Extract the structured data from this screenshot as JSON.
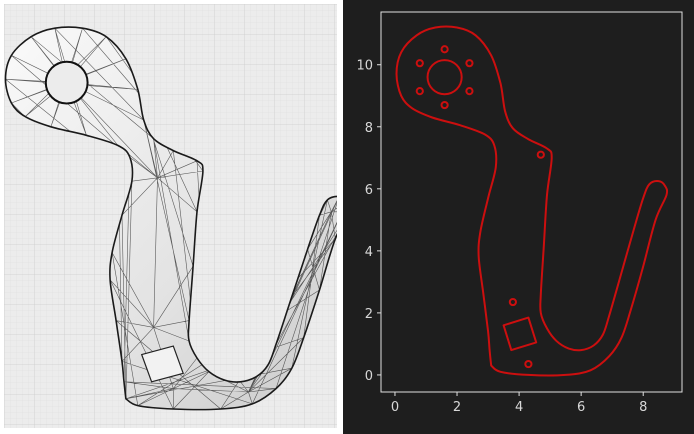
{
  "chart_data": {
    "type": "line",
    "title": "",
    "xlabel": "",
    "ylabel": "",
    "xlim": [
      -0.45,
      9.25
    ],
    "ylim": [
      -0.55,
      11.7
    ],
    "x_ticks": [
      "0",
      "2",
      "4",
      "6",
      "8"
    ],
    "y_ticks": [
      "0",
      "2",
      "4",
      "6",
      "8",
      "10"
    ],
    "x_tick_values": [
      0,
      2,
      4,
      6,
      8
    ],
    "y_tick_values": [
      0,
      2,
      4,
      6,
      8,
      10
    ],
    "grid": false,
    "line_color": "#cc0f0f",
    "background": "#1e1e1e",
    "outline": [
      [
        3.1,
        0.3
      ],
      [
        3.4,
        0.1
      ],
      [
        4.3,
        0.0
      ],
      [
        5.5,
        0.0
      ],
      [
        6.3,
        0.15
      ],
      [
        6.9,
        0.6
      ],
      [
        7.3,
        1.2
      ],
      [
        7.6,
        2.1
      ],
      [
        8.0,
        3.5
      ],
      [
        8.4,
        5.0
      ],
      [
        8.75,
        5.8
      ],
      [
        8.7,
        6.1
      ],
      [
        8.5,
        6.25
      ],
      [
        8.2,
        6.15
      ],
      [
        8.0,
        5.7
      ],
      [
        7.7,
        4.7
      ],
      [
        7.3,
        3.3
      ],
      [
        6.9,
        1.9
      ],
      [
        6.7,
        1.3
      ],
      [
        6.4,
        0.95
      ],
      [
        6.0,
        0.8
      ],
      [
        5.6,
        0.85
      ],
      [
        5.2,
        1.1
      ],
      [
        4.9,
        1.5
      ],
      [
        4.7,
        2.0
      ],
      [
        4.7,
        2.6
      ],
      [
        4.8,
        4.2
      ],
      [
        4.9,
        5.8
      ],
      [
        5.05,
        7.0
      ],
      [
        4.9,
        7.3
      ],
      [
        4.3,
        7.6
      ],
      [
        3.8,
        7.95
      ],
      [
        3.55,
        8.5
      ],
      [
        3.4,
        9.4
      ],
      [
        3.1,
        10.3
      ],
      [
        2.6,
        10.95
      ],
      [
        2.0,
        11.2
      ],
      [
        1.3,
        11.2
      ],
      [
        0.7,
        10.95
      ],
      [
        0.2,
        10.4
      ],
      [
        0.05,
        9.7
      ],
      [
        0.2,
        9.0
      ],
      [
        0.55,
        8.6
      ],
      [
        1.2,
        8.3
      ],
      [
        2.1,
        8.05
      ],
      [
        2.9,
        7.75
      ],
      [
        3.2,
        7.4
      ],
      [
        3.25,
        6.7
      ],
      [
        3.0,
        5.7
      ],
      [
        2.75,
        4.6
      ],
      [
        2.7,
        3.8
      ],
      [
        2.85,
        2.6
      ],
      [
        3.0,
        1.4
      ],
      [
        3.05,
        0.8
      ],
      [
        3.1,
        0.3
      ]
    ],
    "inner_circle": {
      "cx": 1.6,
      "cy": 9.6,
      "r": 0.55
    },
    "bolt_holes": [
      {
        "cx": 0.8,
        "cy": 10.05,
        "r": 0.1
      },
      {
        "cx": 1.6,
        "cy": 10.5,
        "r": 0.1
      },
      {
        "cx": 2.4,
        "cy": 10.05,
        "r": 0.1
      },
      {
        "cx": 0.8,
        "cy": 9.15,
        "r": 0.1
      },
      {
        "cx": 1.6,
        "cy": 8.7,
        "r": 0.1
      },
      {
        "cx": 2.4,
        "cy": 9.15,
        "r": 0.1
      },
      {
        "cx": 4.7,
        "cy": 7.1,
        "r": 0.1
      },
      {
        "cx": 3.8,
        "cy": 2.35,
        "r": 0.1
      },
      {
        "cx": 4.3,
        "cy": 0.35,
        "r": 0.1
      }
    ],
    "square": [
      [
        3.5,
        1.6
      ],
      [
        4.3,
        1.85
      ],
      [
        4.55,
        1.05
      ],
      [
        3.75,
        0.8
      ]
    ]
  }
}
